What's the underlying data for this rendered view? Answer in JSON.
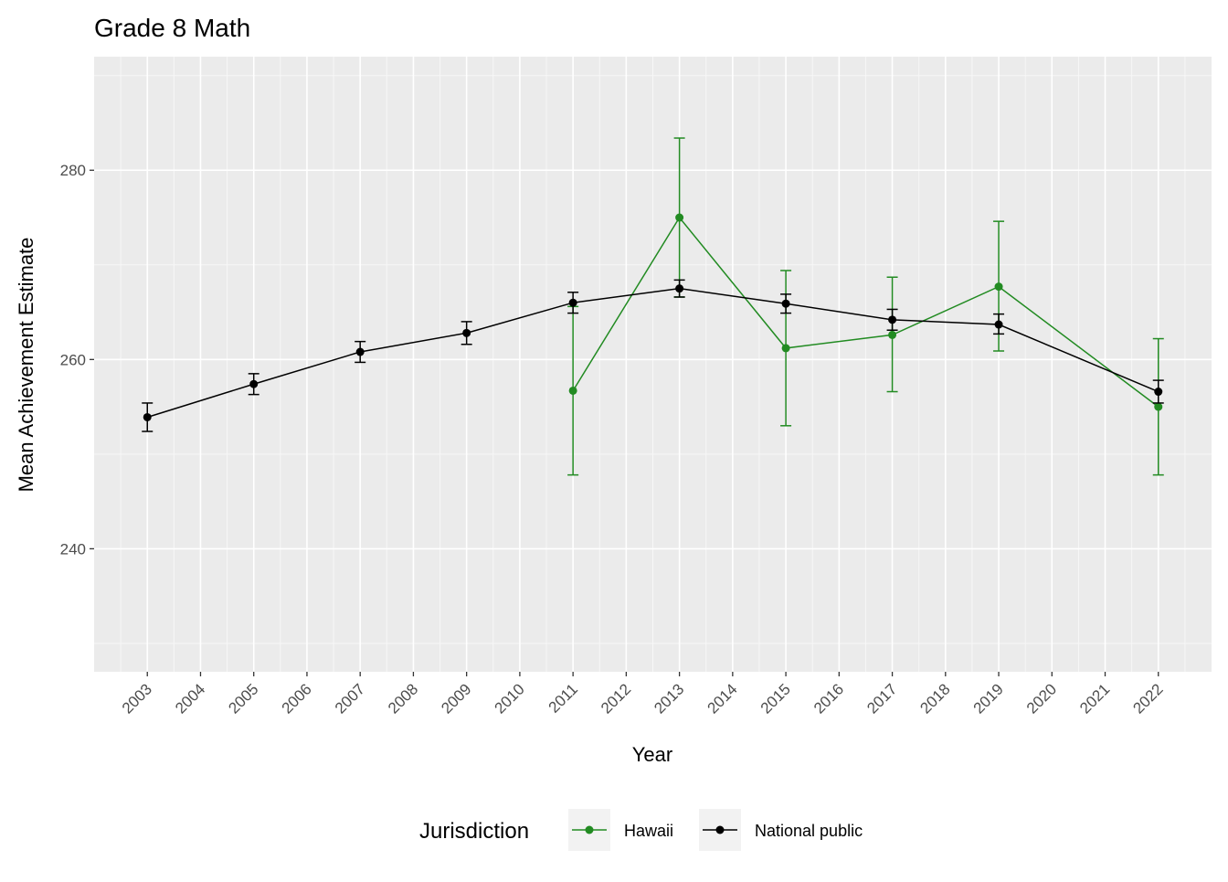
{
  "chart_data": {
    "type": "line",
    "title": "Grade 8 Math",
    "xlabel": "Year",
    "ylabel": "Mean Achievement Estimate",
    "x_ticks": [
      2003,
      2004,
      2005,
      2006,
      2007,
      2008,
      2009,
      2010,
      2011,
      2012,
      2013,
      2014,
      2015,
      2016,
      2017,
      2018,
      2019,
      2020,
      2021,
      2022
    ],
    "y_ticks": [
      240,
      260,
      280
    ],
    "xlim": [
      2002,
      2023
    ],
    "ylim": [
      227,
      292
    ],
    "grid": true,
    "legend": {
      "title": "Jurisdiction",
      "position": "bottom"
    },
    "series": [
      {
        "name": "Hawaii",
        "color": "#228B22",
        "points": [
          {
            "x": 2011,
            "y": 256.7,
            "lo": 247.8,
            "hi": 265.6
          },
          {
            "x": 2013,
            "y": 275.0,
            "lo": 266.6,
            "hi": 283.4
          },
          {
            "x": 2015,
            "y": 261.2,
            "lo": 253.0,
            "hi": 269.4
          },
          {
            "x": 2017,
            "y": 262.6,
            "lo": 256.6,
            "hi": 268.7
          },
          {
            "x": 2019,
            "y": 267.7,
            "lo": 260.9,
            "hi": 274.6
          },
          {
            "x": 2022,
            "y": 255.0,
            "lo": 247.8,
            "hi": 262.2
          }
        ]
      },
      {
        "name": "National public",
        "color": "#000000",
        "points": [
          {
            "x": 2003,
            "y": 253.9,
            "lo": 252.4,
            "hi": 255.4
          },
          {
            "x": 2005,
            "y": 257.4,
            "lo": 256.3,
            "hi": 258.5
          },
          {
            "x": 2007,
            "y": 260.8,
            "lo": 259.7,
            "hi": 261.9
          },
          {
            "x": 2009,
            "y": 262.8,
            "lo": 261.6,
            "hi": 264.0
          },
          {
            "x": 2011,
            "y": 266.0,
            "lo": 264.9,
            "hi": 267.1
          },
          {
            "x": 2013,
            "y": 267.5,
            "lo": 266.6,
            "hi": 268.4
          },
          {
            "x": 2015,
            "y": 265.9,
            "lo": 264.9,
            "hi": 266.9
          },
          {
            "x": 2017,
            "y": 264.2,
            "lo": 263.1,
            "hi": 265.3
          },
          {
            "x": 2019,
            "y": 263.7,
            "lo": 262.7,
            "hi": 264.8
          },
          {
            "x": 2022,
            "y": 256.6,
            "lo": 255.4,
            "hi": 257.8
          }
        ]
      }
    ]
  }
}
